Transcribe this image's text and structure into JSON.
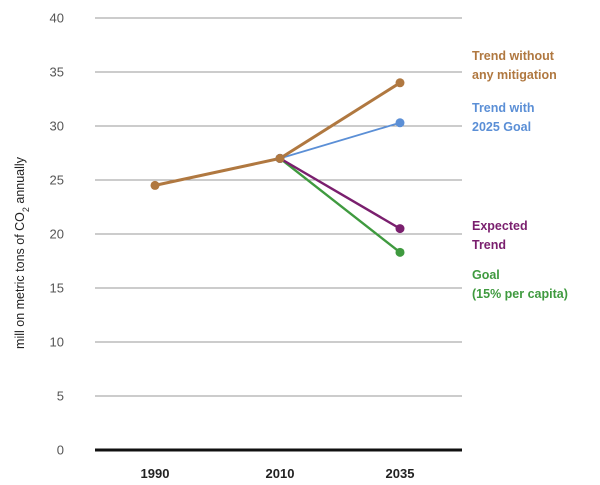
{
  "chart_data": {
    "type": "line",
    "title": "",
    "xlabel": "",
    "ylabel_prefix": "mill on metric tons of CO",
    "ylabel_subscript": "2",
    "ylabel_suffix": " annually",
    "ylim": [
      0,
      40
    ],
    "yticks": [
      "0",
      "5",
      "10",
      "15",
      "20",
      "25",
      "30",
      "35",
      "40"
    ],
    "categories": [
      "1990",
      "2010",
      "2035"
    ],
    "grid": true,
    "series": [
      {
        "name": "Trend without any mitigation",
        "label_lines": [
          "Trend without",
          "any mitigation"
        ],
        "color": "#b07840",
        "values": [
          24.5,
          27.0,
          34.0
        ]
      },
      {
        "name": "Trend with 2025 Goal",
        "label_lines": [
          "Trend with",
          "2025 Goal"
        ],
        "color": "#5b8fd6",
        "values": [
          null,
          27.0,
          30.3
        ]
      },
      {
        "name": "Expected Trend",
        "label_lines": [
          "Expected",
          "Trend"
        ],
        "color": "#7a1f6e",
        "values": [
          null,
          27.0,
          20.5
        ]
      },
      {
        "name": "Goal (15% per capita)",
        "label_lines": [
          "Goal",
          "(15% per capita)"
        ],
        "color": "#3f9a3f",
        "values": [
          null,
          27.0,
          18.3
        ]
      }
    ]
  }
}
